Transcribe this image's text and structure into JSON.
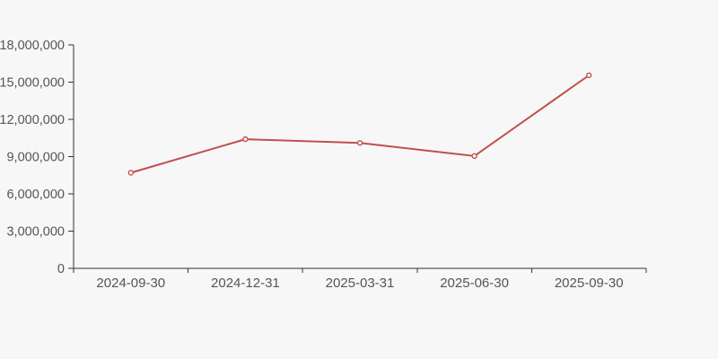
{
  "page": {
    "background": "#f7f7f7"
  },
  "chart_data": {
    "type": "line",
    "title": "",
    "categories": [
      "2024-09-30",
      "2024-12-31",
      "2025-03-31",
      "2025-06-30",
      "2025-09-30"
    ],
    "values": [
      7700000,
      10400000,
      10100000,
      9050000,
      15550000
    ],
    "ylim": [
      0,
      18000000
    ],
    "y_tick_interval": 3000000,
    "y_tick_labels": [
      "0",
      "3,000,000",
      "6,000,000",
      "9,000,000",
      "12,000,000",
      "15,000,000",
      "18,000,000"
    ],
    "grid": false,
    "legend": false,
    "line_color": "#c0504d",
    "marker": "open-circle",
    "marker_fill": "#ffffff",
    "axis_color": "#333333",
    "label_color": "#555555",
    "background": "#f7f7f7"
  }
}
